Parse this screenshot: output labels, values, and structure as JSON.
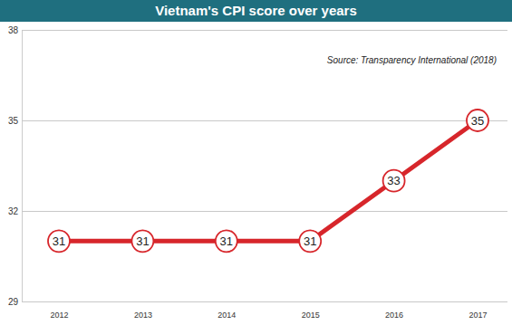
{
  "chart_data": {
    "type": "line",
    "title": "Vietnam's CPI score over years",
    "annotation": "Source: Transparency International (2018)",
    "categories": [
      "2012",
      "2013",
      "2014",
      "2015",
      "2016",
      "2017"
    ],
    "values": [
      31,
      31,
      31,
      31,
      33,
      35
    ],
    "color": "#d7262b",
    "marker": "circle",
    "ylim": [
      29,
      38
    ],
    "yticks": [
      29,
      32,
      35,
      38
    ],
    "grid": true,
    "data_labels": true
  }
}
